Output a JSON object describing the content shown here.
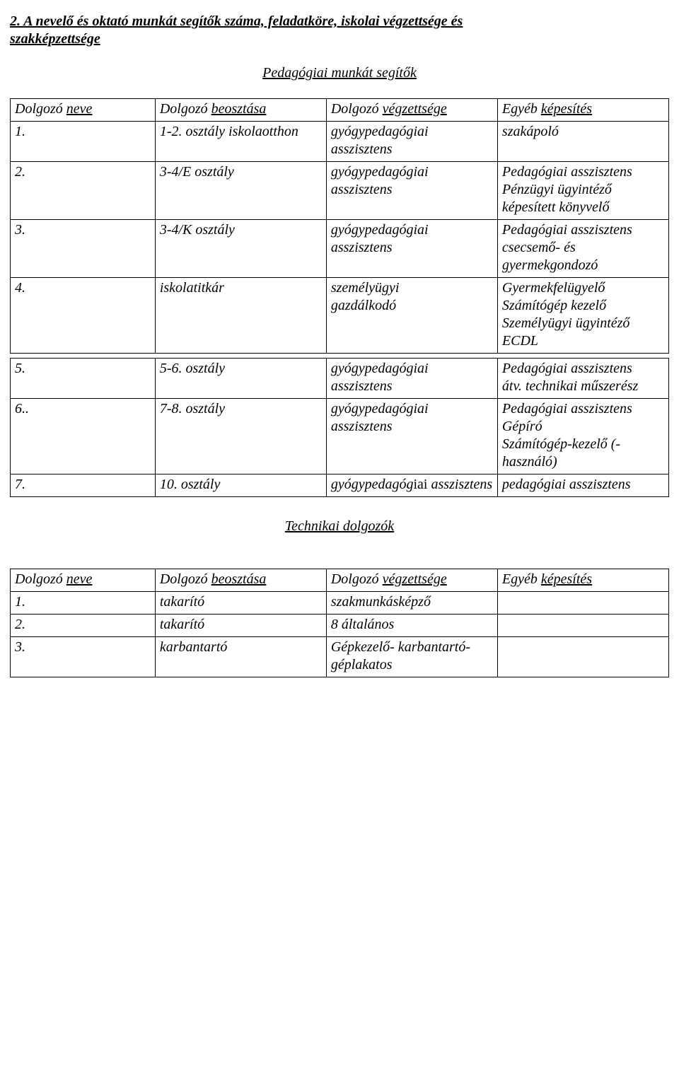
{
  "heading_line1": "2. A nevelő és oktató munkát segítők száma, feladatköre, iskolai végzettsége és",
  "heading_line2": "szakképzettsége",
  "subtitle1": "Pedagógiai munkát segítők",
  "table_headers": {
    "col1_plain": "Dolgozó ",
    "col1_ul": "neve",
    "col2_plain": "Dolgozó ",
    "col2_ul": "beosztása",
    "col3_plain": "Dolgozó ",
    "col3_ul": "végzettsége",
    "col4_plain": "Egyéb ",
    "col4_ul": "képesítés"
  },
  "t1_rows": [
    {
      "c1": "1.",
      "c2": "1-2. osztály iskolaotthon",
      "c3": "gyógypedagógiai asszisztens",
      "c4": "szakápoló"
    },
    {
      "c1": "2.",
      "c2": "3-4/E osztály",
      "c3": "gyógypedagógiai asszisztens",
      "c4_lines": [
        "Pedagógiai asszisztens",
        "Pénzügyi ügyintéző",
        "képesített könyvelő"
      ]
    },
    {
      "c1": "3.",
      "c2": "3-4/K osztály",
      "c3": "gyógypedagógiai asszisztens",
      "c4_lines": [
        "Pedagógiai asszisztens",
        "csecsemő- és",
        "gyermekgondozó"
      ]
    },
    {
      "c1": "4.",
      "c2": "iskolatitkár",
      "c3_lines": [
        "személyügyi",
        "gazdálkodó"
      ],
      "c4_lines": [
        "Gyermekfelügyelő",
        "Számítógép kezelő",
        "Személyügyi ügyintéző",
        "ECDL"
      ]
    }
  ],
  "t2_rows": [
    {
      "c1": "5.",
      "c2": "5-6. osztály",
      "c3": "gyógypedagógiai asszisztens",
      "c4_lines": [
        "Pedagógiai asszisztens",
        "átv. technikai műszerész"
      ]
    },
    {
      "c1": "6..",
      "c2": "7-8. osztály",
      "c3": "gyógypedagógiai asszisztens",
      "c4_lines": [
        "Pedagógiai asszisztens",
        "Gépíró",
        "Számítógép-kezelő (-",
        "használó)"
      ]
    },
    {
      "c1": "7.",
      "c2": "10. osztály",
      "c3_html": "gyógypedagóg<span style='font-style:normal'>iai</span> asszisztens",
      "c4": "pedagógiai asszisztens"
    }
  ],
  "subtitle2": "Technikai dolgozók",
  "t3_rows": [
    {
      "c1": "1.",
      "c2": " takarító",
      "c3": "szakmunkásképző",
      "c4": ""
    },
    {
      "c1": "2.",
      "c2": "takarító",
      "c3": "8 általános",
      "c4": ""
    },
    {
      "c1": "3.",
      "c2": "karbantartó",
      "c3_lines": [
        "Gépkezelő- karbantartó-",
        "géplakatos"
      ],
      "c4": ""
    }
  ]
}
